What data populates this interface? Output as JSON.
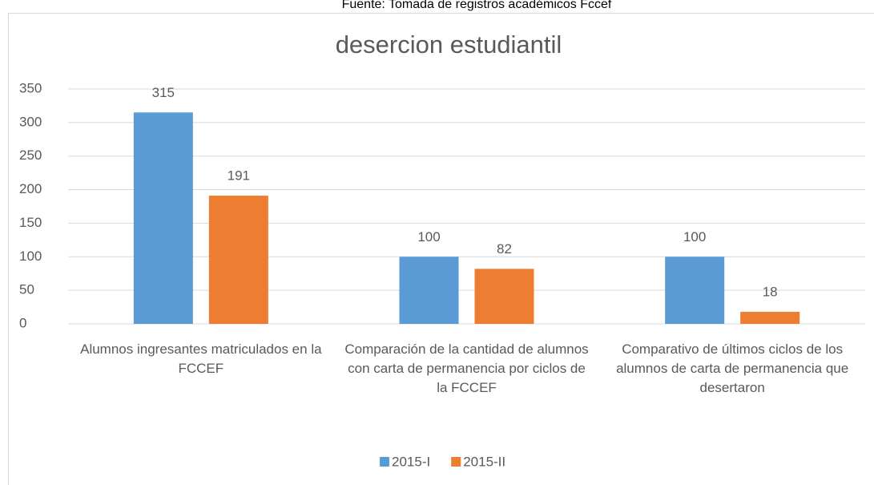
{
  "source": "Fuente: Tomada de registros académicos Fccef",
  "chart_data": {
    "type": "bar",
    "title": "desercion estudiantil",
    "categories": [
      "Alumnos ingresantes matriculados en la FCCEF",
      "Comparación de la cantidad de alumnos con carta de permanencia por ciclos de la FCCEF",
      "Comparativo de últimos ciclos de los alumnos de carta de permanencia que desertaron"
    ],
    "series": [
      {
        "name": "2015-I",
        "color": "#5b9bd5",
        "values": [
          315,
          100,
          100
        ]
      },
      {
        "name": "2015-II",
        "color": "#ed7d31",
        "values": [
          191,
          82,
          18
        ]
      }
    ],
    "ylim": [
      0,
      350
    ],
    "yticks": [
      0,
      50,
      100,
      150,
      200,
      250,
      300,
      350
    ],
    "grid": true,
    "legend": "bottom"
  }
}
